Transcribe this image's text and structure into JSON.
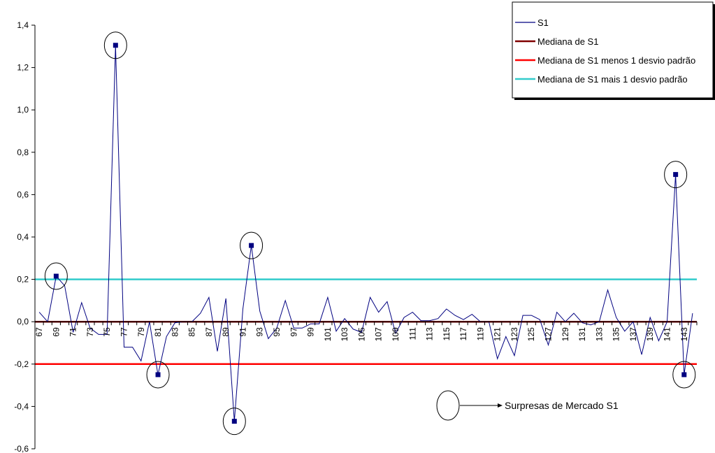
{
  "chart_data": {
    "type": "line",
    "x": [
      67,
      68,
      69,
      70,
      71,
      72,
      73,
      74,
      75,
      76,
      77,
      78,
      79,
      80,
      81,
      82,
      83,
      84,
      85,
      86,
      87,
      88,
      89,
      90,
      91,
      92,
      93,
      94,
      95,
      96,
      97,
      98,
      99,
      100,
      101,
      102,
      103,
      104,
      105,
      106,
      107,
      108,
      109,
      110,
      111,
      112,
      113,
      114,
      115,
      116,
      117,
      118,
      119,
      120,
      121,
      122,
      123,
      124,
      125,
      126,
      127,
      128,
      129,
      130,
      131,
      132,
      133,
      134,
      135,
      136,
      137,
      138,
      139,
      140,
      141,
      142,
      143,
      144
    ],
    "x_tick_labels": [
      "67",
      "69",
      "71",
      "73",
      "75",
      "77",
      "79",
      "81",
      "83",
      "85",
      "87",
      "89",
      "91",
      "93",
      "95",
      "97",
      "99",
      "101",
      "103",
      "105",
      "107",
      "109",
      "111",
      "113",
      "115",
      "117",
      "119",
      "121",
      "123",
      "125",
      "127",
      "129",
      "131",
      "133",
      "135",
      "137",
      "139",
      "141",
      "143"
    ],
    "ylim": [
      -0.6,
      1.4
    ],
    "y_ticks": [
      "-0,6",
      "-0,4",
      "-0,2",
      "0,0",
      "0,2",
      "0,4",
      "0,6",
      "0,8",
      "1,0",
      "1,2",
      "1,4"
    ],
    "series": [
      {
        "name": "S1",
        "color": "#000080",
        "values": [
          0.045,
          0.0,
          0.215,
          0.17,
          -0.05,
          0.09,
          -0.03,
          -0.06,
          -0.06,
          1.305,
          -0.12,
          -0.12,
          -0.185,
          0.0,
          -0.25,
          -0.07,
          -0.005,
          0.0,
          0.0,
          0.04,
          0.115,
          -0.14,
          0.11,
          -0.47,
          0.06,
          0.36,
          0.05,
          -0.08,
          -0.03,
          0.1,
          -0.03,
          -0.03,
          -0.01,
          -0.01,
          0.115,
          -0.045,
          0.015,
          -0.035,
          -0.05,
          0.115,
          0.045,
          0.095,
          -0.055,
          0.02,
          0.045,
          0.005,
          0.005,
          0.015,
          0.06,
          0.03,
          0.01,
          0.035,
          0.0,
          0.0,
          -0.175,
          -0.07,
          -0.16,
          0.03,
          0.03,
          0.01,
          -0.11,
          0.045,
          0.0,
          0.04,
          -0.005,
          -0.015,
          0.0,
          0.15,
          0.02,
          -0.045,
          0.0,
          -0.155,
          0.02,
          -0.09,
          0.0,
          0.695,
          -0.25,
          0.04
        ]
      },
      {
        "name": "Mediana de S1",
        "color": "#800000",
        "y": 0.0
      },
      {
        "name": "Mediana de S1 menos 1 desvio padrão",
        "color": "#ff0000",
        "y": -0.2
      },
      {
        "name": "Mediana de S1 mais 1 desvio padrão",
        "color": "#33cccc",
        "y": 0.2
      }
    ],
    "highlighted_x": [
      69,
      76,
      81,
      90,
      92,
      142,
      143
    ],
    "legend": {
      "position": "top-right",
      "entries": [
        "S1",
        "Mediana de S1",
        "Mediana de S1 menos 1 desvio padrão",
        "Mediana de S1 mais 1 desvio padrão"
      ]
    },
    "annotation": "Surpresas de Mercado S1",
    "grid": false
  }
}
